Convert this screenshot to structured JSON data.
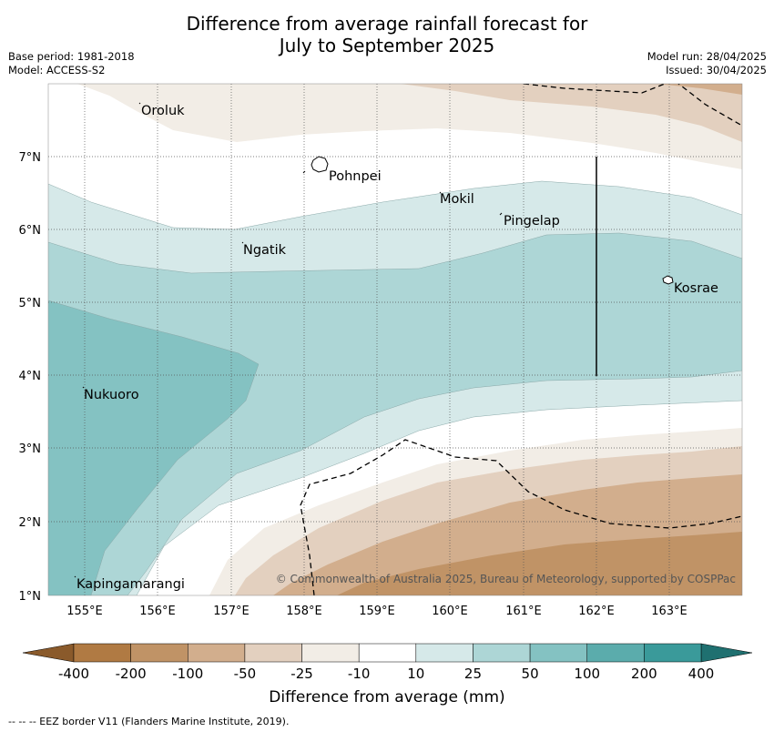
{
  "header": {
    "title_line1": "Difference from average rainfall forecast for",
    "title_line2": "July to September 2025",
    "base_period": "Base period: 1981-2018",
    "model": "Model: ACCESS-S2",
    "model_run": "Model run: 28/04/2025",
    "issued": "Issued: 30/04/2025"
  },
  "map": {
    "lon_ticks": [
      "155°E",
      "156°E",
      "157°E",
      "158°E",
      "159°E",
      "160°E",
      "161°E",
      "162°E",
      "163°E"
    ],
    "lat_ticks": [
      "7°N",
      "6°N",
      "5°N",
      "4°N",
      "3°N",
      "2°N",
      "1°N"
    ],
    "places": [
      {
        "name": "Oroluk"
      },
      {
        "name": "Pohnpei"
      },
      {
        "name": "Mokil"
      },
      {
        "name": "Pingelap"
      },
      {
        "name": "Ngatik"
      },
      {
        "name": "Kosrae"
      },
      {
        "name": "Nukuoro"
      },
      {
        "name": "Kapingamarangi"
      }
    ],
    "copyright": "© Commonwealth of Australia 2025, Bureau of Meteorology, supported by COSPPac"
  },
  "legend": {
    "title": "Difference from average (mm)",
    "tick_labels": [
      "-400",
      "-200",
      "-100",
      "-50",
      "-25",
      "-10",
      "10",
      "25",
      "50",
      "100",
      "200",
      "400"
    ],
    "colors": [
      "#b07a43",
      "#c09366",
      "#d2ae8d",
      "#e3d0bf",
      "#f2ede6",
      "#ffffff",
      "#d6e9e9",
      "#add6d6",
      "#84c2c2",
      "#5bacac",
      "#3a9a9a",
      "#2a8585"
    ]
  },
  "footnote": "--  --  -- EEZ border V11 (Flanders Marine Institute, 2019)."
}
